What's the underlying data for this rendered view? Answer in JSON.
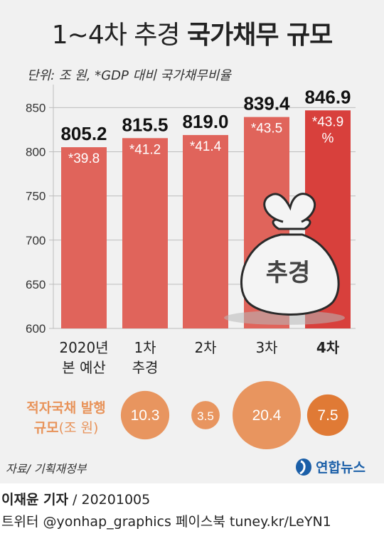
{
  "header": {
    "title_regular": "1~4차 추경",
    "title_bold": "국가채무 규모",
    "unit": "단위: 조 원, *GDP 대비 국가채무비율"
  },
  "chart_data": {
    "type": "bar",
    "categories": [
      [
        "2020년",
        "본 예산"
      ],
      [
        "1차",
        "추경"
      ],
      [
        "2차"
      ],
      [
        "3차"
      ],
      [
        "4차"
      ]
    ],
    "values": [
      805.2,
      815.5,
      819.0,
      839.4,
      846.9
    ],
    "value_labels": [
      "805.2",
      "815.5",
      "819.0",
      "839.4",
      "846.9"
    ],
    "ratio_labels": [
      [
        "*39.8"
      ],
      [
        "*41.2"
      ],
      [
        "*41.4"
      ],
      [
        "*43.5"
      ],
      [
        "*43.9",
        "%"
      ]
    ],
    "highlight_index": 4,
    "yticks": [
      "600",
      "650",
      "700",
      "750",
      "800",
      "850"
    ],
    "ylim": [
      600,
      860
    ],
    "illustration_text": "추경",
    "colors": {
      "bar": "#e0645b",
      "highlight": "#d8403c",
      "bubble": "#e8955f",
      "bubble_highlight": "#e07a35"
    }
  },
  "bond_issuance": {
    "label_bold": "적자국채 발행",
    "label_line2_bold": "규모",
    "label_line2_thin": "(조 원)",
    "values": [
      10.3,
      3.5,
      20.4,
      7.5
    ],
    "value_labels": [
      "10.3",
      "3.5",
      "20.4",
      "7.5"
    ]
  },
  "footer": {
    "source": "자료/ 기획재정부",
    "logo_text": "연합뉴스",
    "reporter": "이재윤 기자",
    "date": " / 20201005",
    "social": "트위터 @yonhap_graphics  페이스북 tuney.kr/LeYN1"
  }
}
